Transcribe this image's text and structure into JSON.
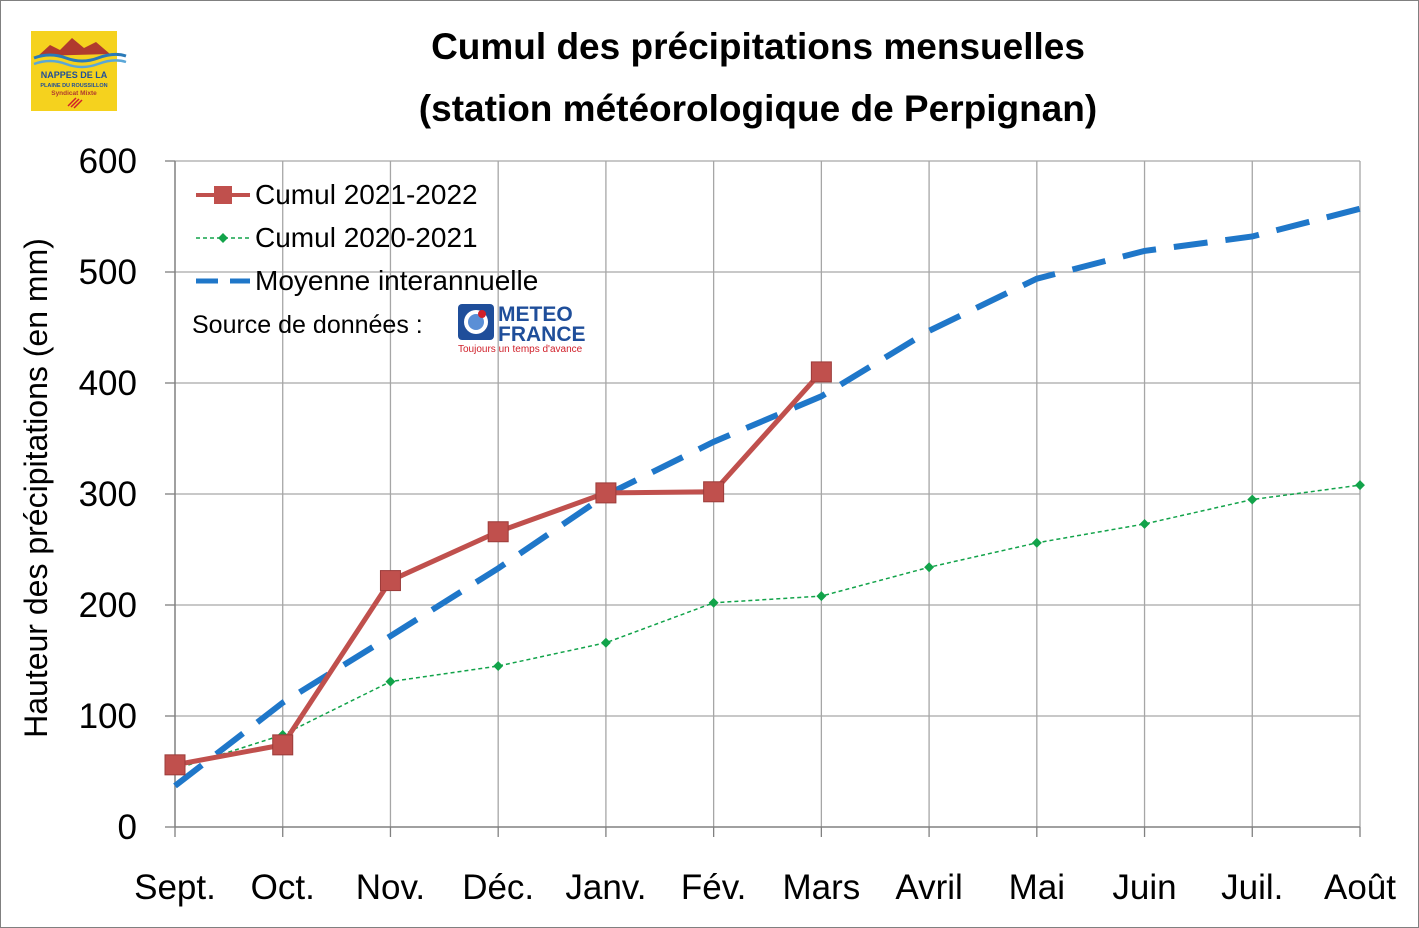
{
  "logo": {
    "line1": "NAPPES DE LA",
    "line2": "PLAINE DU ROUSSILLON",
    "line3": "Syndicat Mixte",
    "background": "#f5d21e"
  },
  "source": {
    "label": "Source de données :",
    "brand_line1": "METEO",
    "brand_line2": "FRANCE",
    "tagline": "Toujours un temps d'avance"
  },
  "colors": {
    "series_2021_2022": "#c0504d",
    "series_2020_2021": "#12a34a",
    "moyenne": "#1f77c9",
    "grid": "#a6a6a6"
  },
  "chart_data": {
    "type": "line",
    "title": "Cumul des précipitations mensuelles",
    "subtitle": "(station météorologique de Perpignan)",
    "xlabel": "",
    "ylabel": "Hauteur des précipitations (en mm)",
    "ylim": [
      0,
      600
    ],
    "yticks": [
      0,
      100,
      200,
      300,
      400,
      500,
      600
    ],
    "grid": true,
    "legend_position": "top-left",
    "categories": [
      "Sept.",
      "Oct.",
      "Nov.",
      "Déc.",
      "Janv.",
      "Fév.",
      "Mars",
      "Avril",
      "Mai",
      "Juin",
      "Juil.",
      "Août"
    ],
    "series": [
      {
        "name": "Cumul 2021-2022",
        "style": "solid-square-markers",
        "values": [
          56,
          74,
          222,
          266,
          301,
          302,
          410,
          null,
          null,
          null,
          null,
          null
        ]
      },
      {
        "name": "Cumul 2020-2021",
        "style": "dashed-diamond-markers",
        "values": [
          52,
          83,
          131,
          145,
          166,
          202,
          208,
          234,
          256,
          273,
          295,
          308
        ]
      },
      {
        "name": "Moyenne interannuelle",
        "style": "long-dash",
        "values": [
          37,
          112,
          172,
          233,
          299,
          347,
          388,
          447,
          494,
          519,
          532,
          557
        ]
      }
    ]
  }
}
